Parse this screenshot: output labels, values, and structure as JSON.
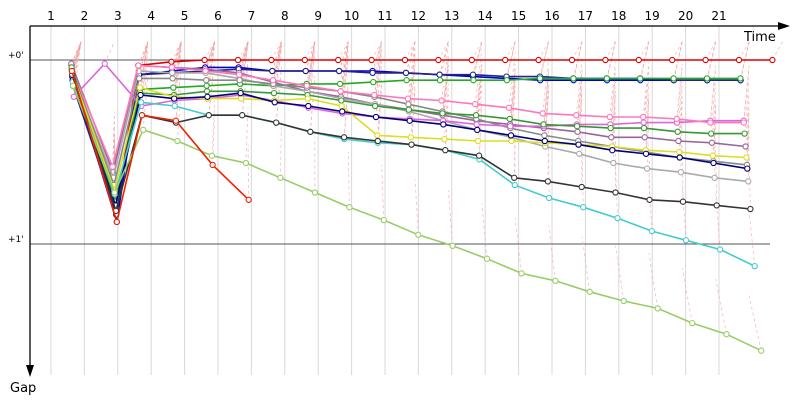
{
  "chart_data": {
    "type": "line",
    "title": "",
    "xlabel": "Time",
    "ylabel": "Gap",
    "x_ticks": [
      "1",
      "2",
      "3",
      "4",
      "5",
      "6",
      "7",
      "8",
      "9",
      "10",
      "11",
      "12",
      "13",
      "14",
      "15",
      "16",
      "17",
      "18",
      "19",
      "20",
      "21"
    ],
    "y_ticks": [
      "+0'",
      "+1'"
    ],
    "y_tick_values": [
      0,
      1
    ],
    "xlim": [
      0.5,
      22.5
    ],
    "ylim": [
      -0.15,
      1.6
    ],
    "y_inverted": true,
    "grid": true,
    "legend": "none",
    "series": [
      {
        "color": "#dd0000",
        "values": [
          0.03,
          0.84,
          0.03,
          0.01,
          0.0,
          0.0,
          0.0,
          0.0,
          0.0,
          0.0,
          0.0,
          0.0,
          0.0,
          0.0,
          0.0,
          0.0,
          0.0,
          0.0,
          0.0,
          0.0,
          0.0,
          0.0
        ]
      },
      {
        "color": "#0000cc",
        "values": [
          0.09,
          0.88,
          0.08,
          0.06,
          0.04,
          0.04,
          0.06,
          0.06,
          0.06,
          0.06,
          0.07,
          0.08,
          0.09,
          0.1,
          0.11,
          0.11,
          0.11,
          0.11,
          0.11,
          0.11,
          0.11
        ]
      },
      {
        "color": "#222288",
        "values": [
          0.14,
          0.84,
          0.08,
          0.07,
          0.06,
          0.05,
          0.06,
          0.06,
          0.06,
          0.07,
          0.07,
          0.08,
          0.08,
          0.09,
          0.09,
          0.1,
          0.1,
          0.1,
          0.11,
          0.11,
          0.11
        ]
      },
      {
        "color": "#22aa22",
        "values": [
          0.06,
          0.8,
          0.16,
          0.15,
          0.14,
          0.13,
          0.14,
          0.13,
          0.13,
          0.12,
          0.11,
          0.11,
          0.11,
          0.11,
          0.1,
          0.1,
          0.1,
          0.1,
          0.1,
          0.1,
          0.1
        ]
      },
      {
        "color": "#996699",
        "values": [
          0.02,
          0.61,
          0.03,
          0.04,
          0.05,
          0.07,
          0.12,
          0.17,
          0.2,
          0.24,
          0.27,
          0.3,
          0.33,
          0.35,
          0.37,
          0.39,
          0.42,
          0.42,
          0.44,
          0.45,
          0.47
        ]
      },
      {
        "color": "#aaaaaa",
        "values": [
          0.07,
          0.64,
          0.06,
          0.07,
          0.07,
          0.1,
          0.14,
          0.17,
          0.21,
          0.24,
          0.28,
          0.33,
          0.38,
          0.42,
          0.47,
          0.51,
          0.56,
          0.59,
          0.61,
          0.64,
          0.66
        ]
      },
      {
        "color": "#888888",
        "values": [
          0.05,
          0.68,
          0.1,
          0.1,
          0.11,
          0.11,
          0.13,
          0.15,
          0.17,
          0.2,
          0.24,
          0.28,
          0.32,
          0.37,
          0.41,
          0.44,
          0.47,
          0.5,
          0.53,
          0.55,
          0.57
        ]
      },
      {
        "color": "#dd66dd",
        "values": [
          0.2,
          0.02,
          0.25,
          0.22,
          0.21,
          0.19,
          0.22,
          0.26,
          0.29,
          0.31,
          0.32,
          0.33,
          0.35,
          0.36,
          0.36,
          0.35,
          0.35,
          0.34,
          0.34,
          0.33,
          0.33
        ]
      },
      {
        "color": "#ff77bb",
        "values": [
          0.05,
          0.58,
          0.03,
          0.04,
          0.06,
          0.08,
          0.11,
          0.14,
          0.17,
          0.19,
          0.21,
          0.22,
          0.24,
          0.26,
          0.29,
          0.3,
          0.31,
          0.31,
          0.32,
          0.34,
          0.34
        ]
      },
      {
        "color": "#339933",
        "values": [
          0.04,
          0.77,
          0.18,
          0.19,
          0.17,
          0.17,
          0.18,
          0.19,
          0.22,
          0.25,
          0.27,
          0.29,
          0.3,
          0.32,
          0.35,
          0.36,
          0.37,
          0.37,
          0.39,
          0.4,
          0.4
        ]
      },
      {
        "color": "#dddd22",
        "values": [
          0.07,
          0.71,
          0.15,
          0.2,
          0.21,
          0.21,
          0.22,
          0.21,
          0.25,
          0.41,
          0.42,
          0.43,
          0.44,
          0.44,
          0.45,
          0.46,
          0.47,
          0.49,
          0.5,
          0.52,
          0.53
        ]
      },
      {
        "color": "#000077",
        "values": [
          0.11,
          0.79,
          0.19,
          0.21,
          0.2,
          0.18,
          0.23,
          0.25,
          0.28,
          0.31,
          0.33,
          0.35,
          0.38,
          0.41,
          0.44,
          0.46,
          0.49,
          0.51,
          0.53,
          0.56,
          0.59
        ]
      },
      {
        "color": "#44cccc",
        "values": [
          0.12,
          0.73,
          0.23,
          0.25,
          0.3,
          0.3,
          0.34,
          0.39,
          0.43,
          0.45,
          0.46,
          0.49,
          0.54,
          0.68,
          0.75,
          0.8,
          0.86,
          0.93,
          0.98,
          1.03,
          1.12
        ]
      },
      {
        "color": "#333333",
        "values": [
          0.08,
          0.82,
          0.3,
          0.34,
          0.3,
          0.3,
          0.34,
          0.39,
          0.42,
          0.44,
          0.46,
          0.49,
          0.52,
          0.64,
          0.66,
          0.69,
          0.72,
          0.76,
          0.77,
          0.79,
          0.81
        ]
      },
      {
        "color": "#99cc66",
        "values": [
          0.14,
          0.72,
          0.38,
          0.44,
          0.52,
          0.56,
          0.64,
          0.72,
          0.8,
          0.87,
          0.95,
          1.01,
          1.08,
          1.16,
          1.2,
          1.26,
          1.31,
          1.35,
          1.43,
          1.49,
          1.58
        ]
      },
      {
        "color": "#ee2200",
        "values": [
          0.06,
          0.88,
          0.3,
          0.33,
          0.57,
          0.76,
          null,
          null,
          null,
          null,
          null,
          null,
          null,
          null,
          null,
          null,
          null,
          null,
          null,
          null,
          null
        ]
      }
    ]
  }
}
